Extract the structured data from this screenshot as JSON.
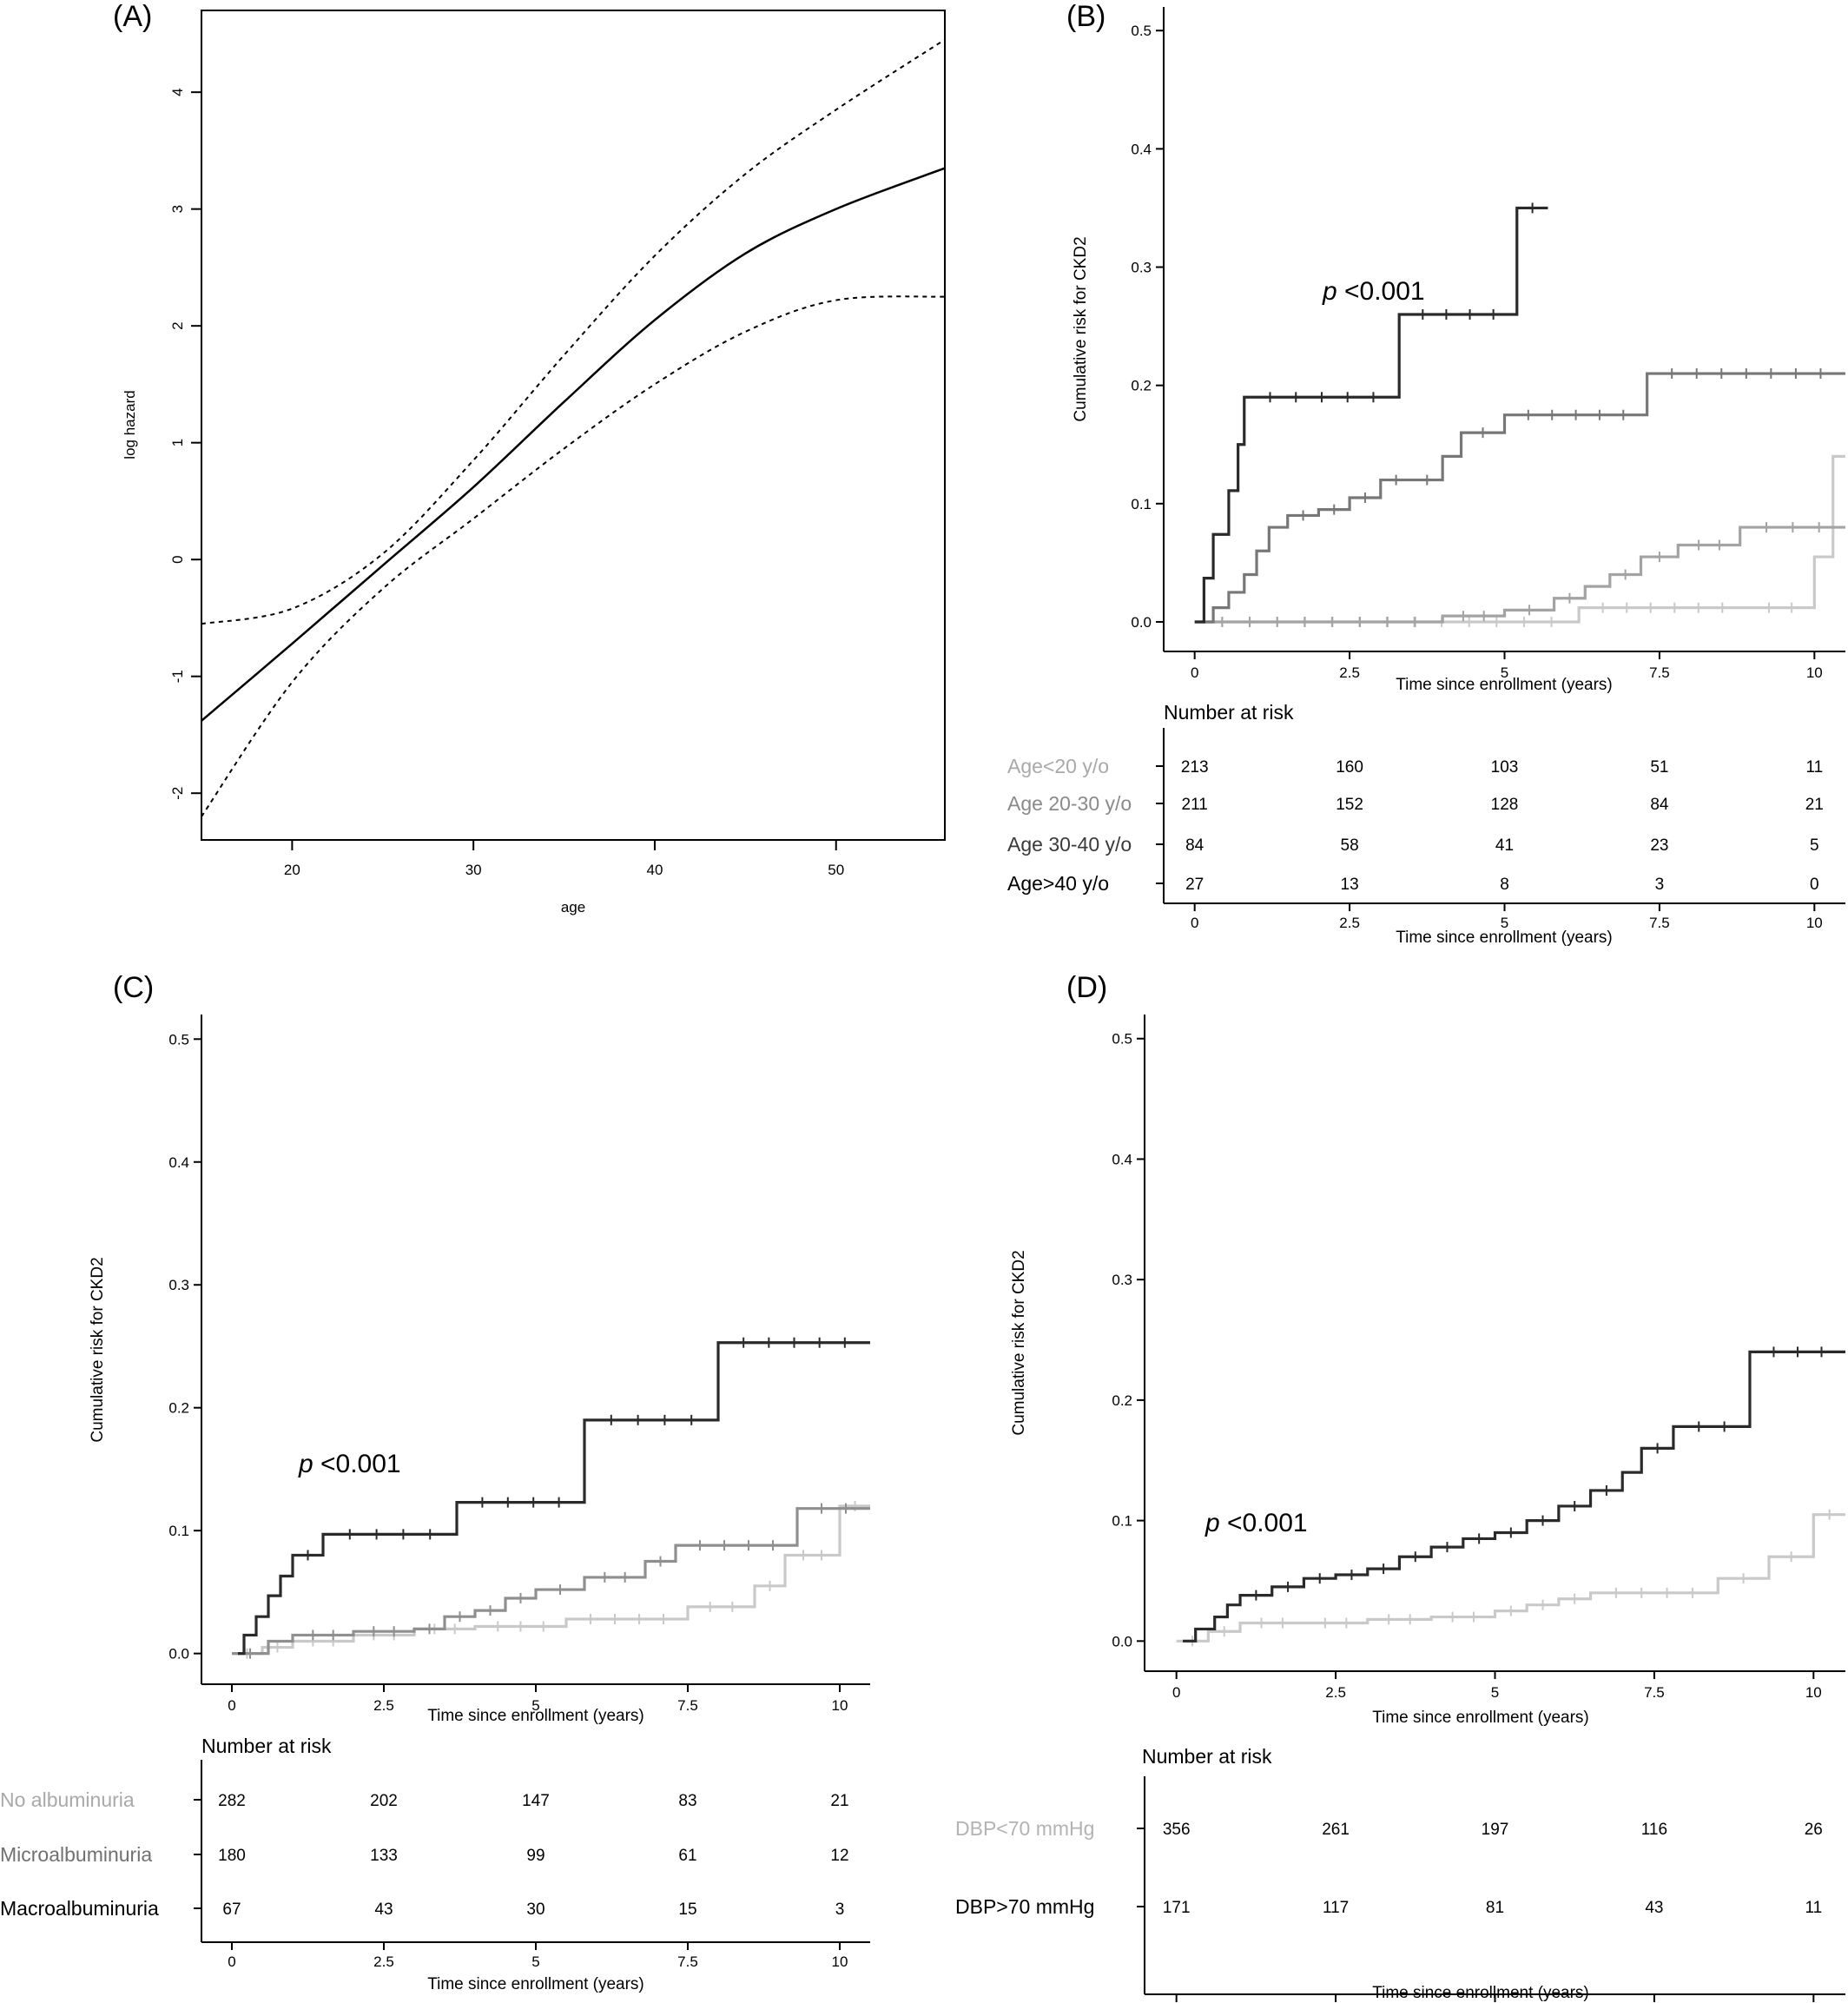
{
  "chart_data": [
    {
      "panel": "(A)",
      "type": "line",
      "xlabel": "age",
      "ylabel": "log hazard",
      "xlim": [
        15,
        56
      ],
      "ylim": [
        -2.4,
        4.7
      ],
      "xticks": [
        20,
        30,
        40,
        50
      ],
      "yticks": [
        -2,
        -1,
        0,
        1,
        2,
        3,
        4
      ],
      "series": [
        {
          "style": "solid",
          "x": [
            15,
            20,
            25,
            30,
            35,
            40,
            45,
            50,
            56
          ],
          "y": [
            -1.38,
            -0.72,
            -0.05,
            0.62,
            1.35,
            2.05,
            2.62,
            3.0,
            3.35
          ]
        },
        {
          "style": "dashed",
          "x": [
            15,
            20,
            25,
            30,
            35,
            40,
            45,
            50,
            56
          ],
          "y": [
            -0.55,
            -0.42,
            0.05,
            0.85,
            1.75,
            2.6,
            3.3,
            3.85,
            4.45
          ]
        },
        {
          "style": "dashed",
          "x": [
            15,
            20,
            25,
            30,
            35,
            40,
            45,
            50,
            56
          ],
          "y": [
            -2.2,
            -1.05,
            -0.25,
            0.35,
            0.95,
            1.5,
            1.95,
            2.22,
            2.25
          ]
        }
      ]
    },
    {
      "panel": "(B)",
      "type": "line",
      "xlabel": "Time since enrollment (years)",
      "ylabel": "Cumulative risk for CKD2",
      "xlim": [
        -0.5,
        10.5
      ],
      "ylim": [
        -0.025,
        0.52
      ],
      "xticks": [
        0,
        2.5,
        5,
        7.5,
        10
      ],
      "xtick_labels": [
        "0",
        "2.5",
        "5",
        "7.5",
        "10"
      ],
      "yticks": [
        0.0,
        0.1,
        0.2,
        0.3,
        0.4,
        0.5
      ],
      "ytick_labels": [
        "0.0",
        "0.1",
        "0.2",
        "0.3",
        "0.4",
        "0.5"
      ],
      "annotation": {
        "p": "p",
        "text": " <0.001"
      },
      "series": [
        {
          "name": "Age<20 y/o",
          "color": "#c9c9c9",
          "x": [
            0,
            6.2,
            8.9,
            10.0,
            10.3,
            10.5
          ],
          "y": [
            0,
            0.012,
            0.012,
            0.055,
            0.14,
            0.14
          ]
        },
        {
          "name": "Age 20-30 y/o",
          "color": "#a3a3a3",
          "x": [
            0,
            4.0,
            5.0,
            5.8,
            6.3,
            6.7,
            7.2,
            7.8,
            8.8,
            10.5
          ],
          "y": [
            0,
            0.005,
            0.01,
            0.02,
            0.03,
            0.04,
            0.055,
            0.065,
            0.08,
            0.08
          ]
        },
        {
          "name": "Age 30-40 y/o",
          "color": "#777777",
          "x": [
            0.1,
            0.3,
            0.55,
            0.8,
            1.0,
            1.2,
            1.5,
            2.0,
            2.5,
            3.0,
            3.5,
            4.0,
            4.3,
            5.0,
            7.3,
            10.5
          ],
          "y": [
            0,
            0.012,
            0.025,
            0.04,
            0.06,
            0.08,
            0.09,
            0.095,
            0.105,
            0.12,
            0.12,
            0.14,
            0.16,
            0.175,
            0.21,
            0.21
          ]
        },
        {
          "name": "Age>40 y/o",
          "color": "#2a2a2a",
          "x": [
            0,
            0.15,
            0.3,
            0.55,
            0.7,
            0.8,
            3.3,
            5.2,
            5.7
          ],
          "y": [
            0,
            0.037,
            0.074,
            0.111,
            0.15,
            0.19,
            0.26,
            0.35,
            0.35
          ]
        }
      ],
      "risk_table": {
        "title": "Number at risk",
        "xlabel": "Time since enrollment (years)",
        "rows": [
          {
            "label": "Age<20 y/o",
            "color": "#a9a9a9",
            "values": [
              "213",
              "160",
              "103",
              "51",
              "11"
            ]
          },
          {
            "label": "Age 20-30 y/o",
            "color": "#8a8a8a",
            "values": [
              "211",
              "152",
              "128",
              "84",
              "21"
            ]
          },
          {
            "label": "Age 30-40 y/o",
            "color": "#3a3a3a",
            "values": [
              "84",
              "58",
              "41",
              "23",
              "5"
            ]
          },
          {
            "label": "Age>40 y/o",
            "color": "#000000",
            "values": [
              "27",
              "13",
              "8",
              "3",
              "0"
            ]
          }
        ]
      }
    },
    {
      "panel": "(C)",
      "type": "line",
      "xlabel": "Time since enrollment (years)",
      "ylabel": "Cumulative risk for CKD2",
      "xlim": [
        -0.5,
        10.5
      ],
      "ylim": [
        -0.025,
        0.52
      ],
      "xticks": [
        0,
        2.5,
        5,
        7.5,
        10
      ],
      "xtick_labels": [
        "0",
        "2.5",
        "5",
        "7.5",
        "10"
      ],
      "yticks": [
        0.0,
        0.1,
        0.2,
        0.3,
        0.4,
        0.5
      ],
      "ytick_labels": [
        "0.0",
        "0.1",
        "0.2",
        "0.3",
        "0.4",
        "0.5"
      ],
      "annotation": {
        "p": "p",
        "text": " <0.001"
      },
      "series": [
        {
          "name": "No albuminuria",
          "color": "#c9c9c9",
          "x": [
            0,
            0.5,
            1.0,
            2.0,
            3.0,
            4.0,
            5.5,
            7.5,
            8.6,
            9.1,
            10.0,
            10.5
          ],
          "y": [
            0,
            0.005,
            0.01,
            0.015,
            0.02,
            0.022,
            0.028,
            0.038,
            0.055,
            0.08,
            0.12,
            0.12
          ]
        },
        {
          "name": "Microalbuminuria",
          "color": "#8f8f8f",
          "x": [
            0,
            0.6,
            1.0,
            2.0,
            3.0,
            3.5,
            4.0,
            4.5,
            5.0,
            5.8,
            6.8,
            7.3,
            9.3,
            10.5
          ],
          "y": [
            0,
            0.01,
            0.015,
            0.018,
            0.02,
            0.03,
            0.035,
            0.045,
            0.052,
            0.062,
            0.075,
            0.088,
            0.118,
            0.118
          ]
        },
        {
          "name": "Macroalbuminuria",
          "color": "#2a2a2a",
          "x": [
            0.1,
            0.2,
            0.4,
            0.6,
            0.8,
            1.0,
            1.5,
            3.7,
            5.8,
            8.0,
            10.5
          ],
          "y": [
            0,
            0.015,
            0.03,
            0.047,
            0.063,
            0.08,
            0.097,
            0.123,
            0.19,
            0.253,
            0.253
          ]
        }
      ],
      "risk_table": {
        "title": "Number at risk",
        "xlabel": "Time since enrollment (years)",
        "rows": [
          {
            "label": "No albuminuria",
            "color": "#a9a9a9",
            "values": [
              "282",
              "202",
              "147",
              "83",
              "21"
            ]
          },
          {
            "label": "Microalbuminuria",
            "color": "#707070",
            "values": [
              "180",
              "133",
              "99",
              "61",
              "12"
            ]
          },
          {
            "label": "Macroalbuminuria",
            "color": "#000000",
            "values": [
              "67",
              "43",
              "30",
              "15",
              "3"
            ]
          }
        ]
      }
    },
    {
      "panel": "(D)",
      "type": "line",
      "xlabel": "Time since enrollment (years)",
      "ylabel": "Cumulative risk for CKD2",
      "xlim": [
        -0.5,
        10.5
      ],
      "ylim": [
        -0.025,
        0.52
      ],
      "xticks": [
        0,
        2.5,
        5,
        7.5,
        10
      ],
      "xtick_labels": [
        "0",
        "2.5",
        "5",
        "7.5",
        "10"
      ],
      "yticks": [
        0.0,
        0.1,
        0.2,
        0.3,
        0.4,
        0.5
      ],
      "ytick_labels": [
        "0.0",
        "0.1",
        "0.2",
        "0.3",
        "0.4",
        "0.5"
      ],
      "annotation": {
        "p": "p",
        "text": " <0.001"
      },
      "series": [
        {
          "name": "DBP<70 mmHg",
          "color": "#c9c9c9",
          "x": [
            0,
            0.5,
            1.0,
            2.0,
            3.0,
            4.0,
            5.0,
            5.5,
            6.0,
            6.5,
            8.5,
            9.3,
            10.0,
            10.5
          ],
          "y": [
            0,
            0.008,
            0.015,
            0.015,
            0.018,
            0.02,
            0.025,
            0.03,
            0.035,
            0.04,
            0.052,
            0.07,
            0.105,
            0.105
          ]
        },
        {
          "name": "DBP>70 mmHg",
          "color": "#2a2a2a",
          "x": [
            0.1,
            0.3,
            0.6,
            0.8,
            1.0,
            1.5,
            2.0,
            2.5,
            3.0,
            3.5,
            4.0,
            4.5,
            5.0,
            5.5,
            6.0,
            6.5,
            7.0,
            7.3,
            7.8,
            9.0,
            10.5
          ],
          "y": [
            0,
            0.01,
            0.02,
            0.03,
            0.038,
            0.045,
            0.052,
            0.055,
            0.06,
            0.07,
            0.078,
            0.085,
            0.09,
            0.1,
            0.112,
            0.125,
            0.14,
            0.16,
            0.178,
            0.24,
            0.24
          ]
        }
      ],
      "risk_table": {
        "title": "Number at risk",
        "xlabel": "Time since enrollment (years)",
        "rows": [
          {
            "label": "DBP<70 mmHg",
            "color": "#b3b3b3",
            "values": [
              "356",
              "261",
              "197",
              "116",
              "26"
            ]
          },
          {
            "label": "DBP>70 mmHg",
            "color": "#000000",
            "values": [
              "171",
              "117",
              "81",
              "43",
              "11"
            ]
          }
        ]
      }
    }
  ]
}
